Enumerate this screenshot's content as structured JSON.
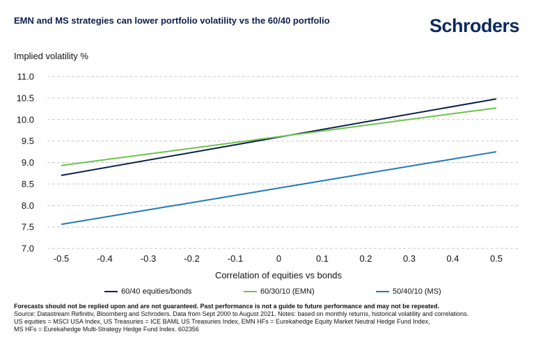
{
  "header": {
    "title": "EMN and MS strategies can lower portfolio volatility vs the 60/40 portfolio",
    "brand": "Schroders"
  },
  "footer": {
    "disclaimer": "Forecasts should not be replied upon and are not guaranteed. Past performance is not a guide to future performance and may not be repeated.",
    "source_line1": "Source: Datastream Refinitiv, Bloomberg and Schroders. Data from Sept 2000 to August 2021. Notes: based on monthly returns, historical volatility and correlations.",
    "source_line2": "US equities = MSCI USA Index, US Treasuries = ICE BAML US Treasuries Index, EMN HFs = Eurekahedge Equity Market Neutral Hedge Fund Index,",
    "source_line3": "MS HFs = Eurekahedge Multi-Strategy Hedge Fund Index. 602356"
  },
  "chart_data": {
    "type": "line",
    "title": "EMN and MS strategies can lower portfolio volatility vs the 60/40 portfolio",
    "xlabel": "Correlation of equities vs bonds",
    "ylabel": "Implied volatility %",
    "x": [
      -0.5,
      0.5
    ],
    "xticks": [
      -0.5,
      -0.4,
      -0.3,
      -0.2,
      -0.1,
      0,
      0.1,
      0.2,
      0.3,
      0.4,
      0.5
    ],
    "xtick_labels": [
      "-0.5",
      "-0.4",
      "-0.3",
      "-0.2",
      "-0.1",
      "0",
      "0.1",
      "0.2",
      "0.3",
      "0.4",
      "0.5"
    ],
    "yticks": [
      7.0,
      7.5,
      8.0,
      8.5,
      9.0,
      9.5,
      10.0,
      10.5,
      11.0
    ],
    "ytick_labels": [
      "7.0",
      "7.5",
      "8.0",
      "8.5",
      "9.0",
      "9.5",
      "10.0",
      "10.5",
      "11.0"
    ],
    "xlim": [
      -0.5,
      0.5
    ],
    "ylim": [
      7.0,
      11.0
    ],
    "grid": "horizontal dashed",
    "legend_position": "bottom",
    "series": [
      {
        "name": "60/40 equities/bonds",
        "x": [
          -0.5,
          0.5
        ],
        "values": [
          8.7,
          10.48
        ],
        "color": "#0b1f4d"
      },
      {
        "name": "60/30/10 (EMN)",
        "x": [
          -0.5,
          0.5
        ],
        "values": [
          8.93,
          10.27
        ],
        "color": "#6cc24a"
      },
      {
        "name": "50/40/10 (MS)",
        "x": [
          -0.5,
          0.5
        ],
        "values": [
          7.56,
          9.25
        ],
        "color": "#1f78b4"
      }
    ]
  }
}
